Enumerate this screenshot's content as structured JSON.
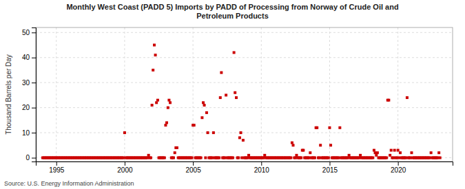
{
  "chart_data": {
    "type": "scatter",
    "title": "Monthly West Coast (PADD 5) Imports by PADD of Processing from Norway of Crude Oil and\nPetroleum Products",
    "ylabel": "Thousand Barrels per Day",
    "annotations": [
      "Source: U.S. Energy Information Administration"
    ],
    "color": "#cc0000",
    "marker": "square",
    "grid": true,
    "xlim": [
      1993.5,
      2024.0
    ],
    "ylim": [
      -1.5,
      52
    ],
    "xticks": [
      1995,
      2000,
      2005,
      2010,
      2015,
      2020
    ],
    "yticks": [
      0,
      10,
      20,
      30,
      40,
      50
    ],
    "x": [
      1994.0,
      1994.08,
      1994.17,
      1994.25,
      1994.33,
      1994.42,
      1994.5,
      1994.58,
      1994.67,
      1994.75,
      1994.83,
      1994.92,
      1995.0,
      1995.08,
      1995.17,
      1995.25,
      1995.33,
      1995.42,
      1995.5,
      1995.58,
      1995.67,
      1995.75,
      1995.83,
      1995.92,
      1996.0,
      1996.08,
      1996.17,
      1996.25,
      1996.33,
      1996.42,
      1996.5,
      1996.58,
      1996.67,
      1996.75,
      1996.83,
      1996.92,
      1997.0,
      1997.08,
      1997.17,
      1997.25,
      1997.33,
      1997.42,
      1997.5,
      1997.58,
      1997.67,
      1997.75,
      1997.83,
      1997.92,
      1998.0,
      1998.08,
      1998.17,
      1998.25,
      1998.33,
      1998.42,
      1998.5,
      1998.58,
      1998.67,
      1998.75,
      1998.83,
      1998.92,
      1999.0,
      1999.08,
      1999.17,
      1999.25,
      1999.33,
      1999.42,
      1999.5,
      1999.58,
      1999.67,
      1999.75,
      1999.83,
      1999.92,
      2000.0,
      2000.08,
      2000.17,
      2000.25,
      2000.33,
      2000.42,
      2000.5,
      2000.58,
      2000.67,
      2000.75,
      2000.83,
      2000.92,
      2001.0,
      2001.08,
      2001.17,
      2001.25,
      2001.33,
      2001.42,
      2001.5,
      2001.58,
      2001.67,
      2001.75,
      2001.83,
      2001.92,
      2002.0,
      2002.08,
      2002.17,
      2002.25,
      2002.33,
      2002.42,
      2002.5,
      2002.58,
      2002.67,
      2002.75,
      2002.83,
      2002.92,
      2003.0,
      2003.08,
      2003.17,
      2003.25,
      2003.33,
      2003.42,
      2003.5,
      2003.58,
      2003.67,
      2003.75,
      2003.83,
      2003.92,
      2004.0,
      2004.08,
      2004.17,
      2004.25,
      2004.33,
      2004.42,
      2004.5,
      2004.58,
      2004.67,
      2004.75,
      2004.83,
      2004.92,
      2005.0,
      2005.08,
      2005.17,
      2005.25,
      2005.33,
      2005.42,
      2005.5,
      2005.58,
      2005.67,
      2005.75,
      2005.83,
      2005.92,
      2006.0,
      2006.08,
      2006.17,
      2006.25,
      2006.33,
      2006.42,
      2006.5,
      2006.58,
      2006.67,
      2006.75,
      2006.83,
      2006.92,
      2007.0,
      2007.08,
      2007.17,
      2007.25,
      2007.33,
      2007.42,
      2007.5,
      2007.58,
      2007.67,
      2007.75,
      2007.83,
      2007.92,
      2008.0,
      2008.08,
      2008.17,
      2008.25,
      2008.33,
      2008.42,
      2008.5,
      2008.58,
      2008.67,
      2008.75,
      2008.83,
      2008.92,
      2009.0,
      2009.08,
      2009.17,
      2009.25,
      2009.33,
      2009.42,
      2009.5,
      2009.58,
      2009.67,
      2009.75,
      2009.83,
      2009.92,
      2010.0,
      2010.08,
      2010.17,
      2010.25,
      2010.33,
      2010.42,
      2010.5,
      2010.58,
      2010.67,
      2010.75,
      2010.83,
      2010.92,
      2011.0,
      2011.08,
      2011.17,
      2011.25,
      2011.33,
      2011.42,
      2011.5,
      2011.58,
      2011.67,
      2011.75,
      2011.83,
      2011.92,
      2012.0,
      2012.08,
      2012.17,
      2012.25,
      2012.33,
      2012.42,
      2012.5,
      2012.58,
      2012.67,
      2012.75,
      2012.83,
      2012.92,
      2013.0,
      2013.08,
      2013.17,
      2013.25,
      2013.33,
      2013.42,
      2013.5,
      2013.58,
      2013.67,
      2013.75,
      2013.83,
      2013.92,
      2014.0,
      2014.08,
      2014.17,
      2014.25,
      2014.33,
      2014.42,
      2014.5,
      2014.58,
      2014.67,
      2014.75,
      2014.83,
      2014.92,
      2015.0,
      2015.08,
      2015.17,
      2015.25,
      2015.33,
      2015.42,
      2015.5,
      2015.58,
      2015.67,
      2015.75,
      2015.83,
      2015.92,
      2016.0,
      2016.08,
      2016.17,
      2016.25,
      2016.33,
      2016.42,
      2016.5,
      2016.58,
      2016.67,
      2016.75,
      2016.83,
      2016.92,
      2017.0,
      2017.08,
      2017.17,
      2017.25,
      2017.33,
      2017.42,
      2017.5,
      2017.58,
      2017.67,
      2017.75,
      2017.83,
      2017.92,
      2018.0,
      2018.08,
      2018.17,
      2018.25,
      2018.33,
      2018.42,
      2018.5,
      2018.58,
      2018.67,
      2018.75,
      2018.83,
      2018.92,
      2019.0,
      2019.08,
      2019.17,
      2019.25,
      2019.33,
      2019.42,
      2019.5,
      2019.58,
      2019.67,
      2019.75,
      2019.83,
      2019.92,
      2020.0,
      2020.08,
      2020.17,
      2020.25,
      2020.33,
      2020.42,
      2020.5,
      2020.58,
      2020.67,
      2020.75,
      2020.83,
      2020.92,
      2021.0,
      2021.08,
      2021.17,
      2021.25,
      2021.33,
      2021.42,
      2021.5,
      2021.58,
      2021.67,
      2021.75,
      2021.83,
      2021.92,
      2022.0,
      2022.08,
      2022.17,
      2022.25,
      2022.33,
      2022.42,
      2022.5,
      2022.58,
      2022.67,
      2022.75,
      2022.83,
      2022.92,
      2023.0,
      2023.08
    ],
    "values": [
      0,
      0,
      0,
      0,
      0,
      0,
      0,
      0,
      0,
      0,
      0,
      0,
      0,
      0,
      0,
      0,
      0,
      0,
      0,
      0,
      0,
      0,
      0,
      0,
      0,
      0,
      0,
      0,
      0,
      0,
      0,
      0,
      0,
      0,
      0,
      0,
      0,
      0,
      0,
      0,
      0,
      0,
      0,
      0,
      0,
      0,
      0,
      0,
      0,
      0,
      0,
      0,
      0,
      0,
      0,
      0,
      0,
      0,
      0,
      0,
      0,
      0,
      0,
      0,
      0,
      0,
      0,
      0,
      0,
      0,
      0,
      0,
      10,
      0,
      0,
      0,
      0,
      0,
      0,
      0,
      0,
      0,
      0,
      0,
      0,
      0,
      0,
      0,
      0,
      0,
      0,
      0,
      0,
      1,
      0,
      0,
      21,
      35,
      45,
      41,
      22,
      23,
      0,
      0,
      0,
      0,
      0,
      0,
      13,
      14,
      20,
      23,
      22,
      0,
      0,
      0,
      2,
      4,
      4,
      0,
      0,
      0,
      0,
      0,
      0,
      0,
      0,
      0,
      0,
      0,
      0,
      0,
      13,
      13,
      0,
      0,
      0,
      0,
      0,
      0,
      16,
      22,
      21,
      0,
      18,
      10,
      0,
      0,
      0,
      0,
      10,
      0,
      0,
      0,
      0,
      0,
      24,
      34,
      0,
      0,
      0,
      25,
      0,
      0,
      0,
      0,
      0,
      0,
      42,
      26,
      24,
      0,
      0,
      8,
      10,
      0,
      7,
      0,
      0,
      0,
      0,
      1,
      0,
      0,
      0,
      0,
      0,
      0,
      0,
      0,
      0,
      0,
      0,
      0,
      0,
      1,
      0,
      0,
      0,
      0,
      0,
      0,
      0,
      0,
      0,
      0,
      0,
      0,
      0,
      0,
      0,
      0,
      0,
      0,
      0,
      0,
      0,
      0,
      0,
      6,
      5,
      0,
      0,
      1,
      0,
      0,
      0,
      0,
      3,
      3,
      0,
      0,
      0,
      0,
      0,
      2,
      0,
      0,
      0,
      0,
      12,
      12,
      0,
      0,
      5,
      0,
      0,
      0,
      0,
      0,
      0,
      0,
      12,
      5,
      0,
      0,
      0,
      0,
      0,
      0,
      0,
      12,
      0,
      0,
      0,
      0,
      0,
      0,
      0,
      1,
      0,
      0,
      0,
      0,
      0,
      0,
      0,
      0,
      0,
      1,
      0,
      0,
      0,
      0,
      0,
      0,
      0,
      0,
      0,
      0,
      0,
      3,
      2,
      1,
      2,
      0,
      0,
      0,
      0,
      0,
      0,
      0,
      0,
      23,
      23,
      1,
      3,
      0,
      0,
      3,
      0,
      0,
      3,
      0,
      2,
      0,
      0,
      0,
      0,
      0,
      24,
      0,
      0,
      0,
      2,
      0,
      0,
      0,
      0,
      0,
      0,
      0,
      0,
      0,
      0,
      0,
      0,
      0,
      0,
      0,
      0,
      2,
      0,
      0,
      0,
      0,
      0,
      0,
      2,
      0
    ]
  }
}
